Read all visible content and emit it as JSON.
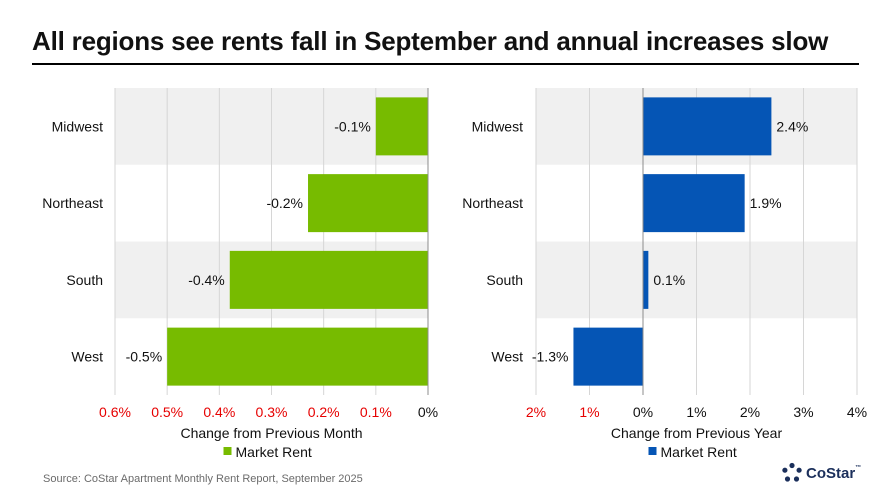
{
  "title": "All regions see rents fall in September and annual increases slow",
  "source": "Source: CoStar Apartment Monthly Rent Report, September 2025",
  "logo": {
    "text": "CoStar",
    "mark": "™"
  },
  "colors": {
    "green": "#77bb00",
    "blue": "#0555b5",
    "negative_tick": "#e60000",
    "band": "#f0f0f0"
  },
  "chart_data": [
    {
      "type": "bar",
      "orientation": "horizontal",
      "categories": [
        "Midwest",
        "Northeast",
        "South",
        "West"
      ],
      "values": [
        -0.1,
        -0.23,
        -0.38,
        -0.5
      ],
      "data_labels": [
        "-0.1%",
        "-0.2%",
        "-0.4%",
        "-0.5%"
      ],
      "xlabel": "Change from Previous Month",
      "xlim": [
        -0.6,
        0
      ],
      "ticks": [
        -0.6,
        -0.5,
        -0.4,
        -0.3,
        -0.2,
        -0.1,
        0
      ],
      "tick_labels": [
        "0.6%",
        "0.5%",
        "0.4%",
        "0.3%",
        "0.2%",
        "0.1%",
        "0%"
      ],
      "legend": {
        "label": "Market Rent",
        "position": "bottom"
      },
      "color": "#77bb00",
      "grid": true
    },
    {
      "type": "bar",
      "orientation": "horizontal",
      "categories": [
        "Midwest",
        "Northeast",
        "South",
        "West"
      ],
      "values": [
        2.4,
        1.9,
        0.1,
        -1.3
      ],
      "data_labels": [
        "2.4%",
        "1.9%",
        "0.1%",
        "-1.3%"
      ],
      "xlabel": "Change from Previous Year",
      "xlim": [
        -2,
        4
      ],
      "ticks": [
        -2,
        -1,
        0,
        1,
        2,
        3,
        4
      ],
      "tick_labels": [
        "2%",
        "1%",
        "0%",
        "1%",
        "2%",
        "3%",
        "4%"
      ],
      "legend": {
        "label": "Market Rent",
        "position": "bottom"
      },
      "color": "#0555b5",
      "grid": true
    }
  ]
}
